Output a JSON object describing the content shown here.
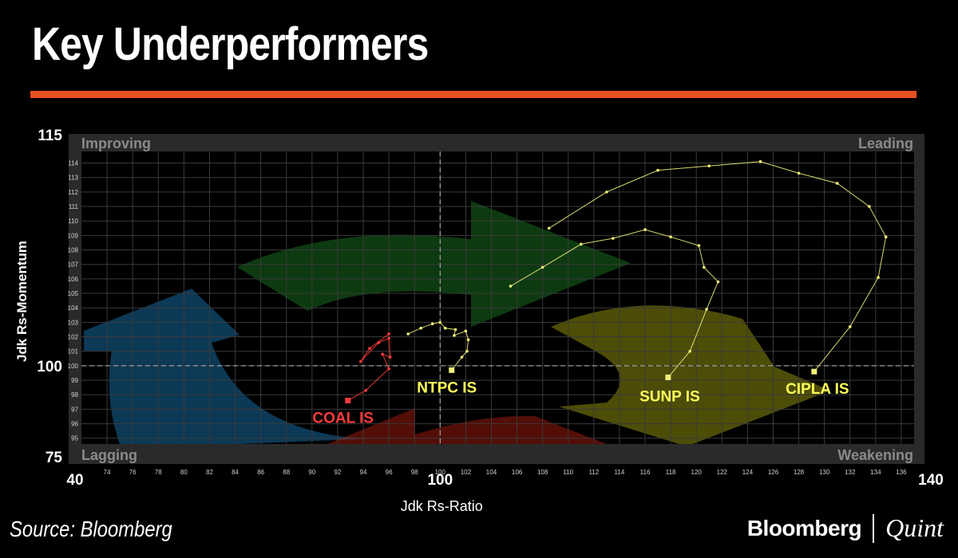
{
  "title": "Key Underperformers",
  "source": "Source: Bloomberg",
  "brand": {
    "name": "Bloomberg",
    "partner": "Quint"
  },
  "colors": {
    "accent_rule": "#e8501e",
    "coal": "#ff3b3b",
    "tail": "#f0f07a",
    "label": "#ffff5a",
    "improving": "#1b7fbf",
    "leading": "#1f8a25",
    "weakening": "#9a9a10",
    "lagging": "#b82010"
  },
  "chart_data": {
    "type": "scatter",
    "xlabel": "Jdk Rs-Ratio",
    "ylabel": "Jdk Rs-Momentum",
    "xlim": [
      40,
      140
    ],
    "ylim": [
      75,
      115
    ],
    "inner_xlim": [
      72,
      137
    ],
    "inner_ylim": [
      94.6,
      114.8
    ],
    "center": {
      "x": 100,
      "y": 100
    },
    "x_outer_ticks": [
      "40",
      "100",
      "140"
    ],
    "y_outer_ticks": [
      "75",
      "100",
      "115"
    ],
    "x_ticks": [
      74,
      76,
      78,
      80,
      82,
      84,
      86,
      88,
      90,
      92,
      94,
      96,
      98,
      100,
      102,
      104,
      106,
      108,
      110,
      112,
      114,
      116,
      118,
      120,
      122,
      124,
      126,
      128,
      130,
      132,
      134,
      136
    ],
    "y_ticks": [
      95,
      96,
      97,
      98,
      99,
      100,
      101,
      102,
      103,
      104,
      105,
      106,
      107,
      108,
      109,
      110,
      111,
      112,
      113,
      114
    ],
    "grid": true,
    "quadrants": [
      "Improving",
      "Leading",
      "Lagging",
      "Weakening"
    ],
    "series": [
      {
        "name": "COAL IS",
        "color": "#ff3b3b",
        "points": [
          [
            96.0,
            102.2
          ],
          [
            94.5,
            101.2
          ],
          [
            93.8,
            100.3
          ],
          [
            95.2,
            101.6
          ],
          [
            96.0,
            101.9
          ],
          [
            96.1,
            100.6
          ],
          [
            95.5,
            100.8
          ],
          [
            96.0,
            99.8
          ],
          [
            94.2,
            98.3
          ],
          [
            92.8,
            97.6
          ]
        ]
      },
      {
        "name": "NTPC IS",
        "color": "#f0f07a",
        "points": [
          [
            97.5,
            102.2
          ],
          [
            98.5,
            102.6
          ],
          [
            99.4,
            102.9
          ],
          [
            100.0,
            103.0
          ],
          [
            100.4,
            102.6
          ],
          [
            101.2,
            102.5
          ],
          [
            101.1,
            102.1
          ],
          [
            102.0,
            102.4
          ],
          [
            102.2,
            101.8
          ],
          [
            102.1,
            101.0
          ],
          [
            101.7,
            100.6
          ],
          [
            100.9,
            99.7
          ]
        ]
      },
      {
        "name": "SUNP IS",
        "color": "#f0f07a",
        "points": [
          [
            105.5,
            105.5
          ],
          [
            108.0,
            106.8
          ],
          [
            111.0,
            108.4
          ],
          [
            113.5,
            108.8
          ],
          [
            116.0,
            109.4
          ],
          [
            118.0,
            108.9
          ],
          [
            120.2,
            108.3
          ],
          [
            120.6,
            106.8
          ],
          [
            121.7,
            105.8
          ],
          [
            120.8,
            103.9
          ],
          [
            119.5,
            101.0
          ],
          [
            117.8,
            99.2
          ]
        ]
      },
      {
        "name": "CIPLA IS",
        "color": "#f0f07a",
        "points": [
          [
            108.5,
            109.5
          ],
          [
            113.0,
            112.0
          ],
          [
            117.0,
            113.5
          ],
          [
            121.0,
            113.8
          ],
          [
            125.0,
            114.1
          ],
          [
            128.0,
            113.3
          ],
          [
            131.0,
            112.6
          ],
          [
            133.5,
            111.0
          ],
          [
            134.8,
            108.9
          ],
          [
            134.2,
            106.1
          ],
          [
            132.0,
            102.7
          ],
          [
            129.2,
            99.6
          ]
        ]
      }
    ]
  }
}
